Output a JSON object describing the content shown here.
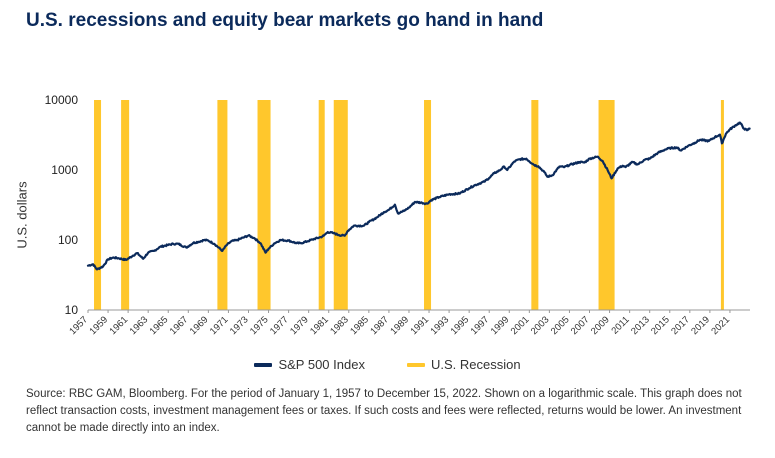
{
  "title": "U.S. recessions and equity bear markets go hand in hand",
  "footnote": "Source: RBC GAM, Bloomberg. For the period of January 1, 1957 to December 15, 2022. Shown on a logarithmic scale. This graph does not reflect transaction costs, investment management fees or taxes. If such costs and fees were reflected, returns would be lower. An investment cannot be made directly into an index.",
  "colors": {
    "line": "#0b2a5b",
    "recession": "#ffc72c",
    "title": "#0b2a5b"
  },
  "chart_data": {
    "type": "line",
    "ylabel": "U.S. dollars",
    "y_scale": "log",
    "ylim": [
      10,
      10000
    ],
    "xlim": [
      1957.0,
      2023.0
    ],
    "y_ticks": [
      {
        "value": 10,
        "label": "10"
      },
      {
        "value": 100,
        "label": "100"
      },
      {
        "value": 1000,
        "label": "1000"
      },
      {
        "value": 10000,
        "label": "10000"
      }
    ],
    "x_ticks": [
      "1957",
      "1959",
      "1961",
      "1963",
      "1965",
      "1967",
      "1969",
      "1971",
      "1973",
      "1975",
      "1977",
      "1979",
      "1981",
      "1983",
      "1985",
      "1987",
      "1989",
      "1991",
      "1993",
      "1995",
      "1997",
      "1999",
      "2001",
      "2003",
      "2005",
      "2007",
      "2009",
      "2011",
      "2013",
      "2015",
      "2017",
      "2019",
      "2021"
    ],
    "legend": {
      "position": "bottom-center",
      "line_label": "S&P 500 Index",
      "recession_label": "U.S. Recession"
    },
    "recessions": [
      [
        1957.6,
        1958.3
      ],
      [
        1960.3,
        1961.1
      ],
      [
        1969.9,
        1970.9
      ],
      [
        1973.9,
        1975.2
      ],
      [
        1980.0,
        1980.6
      ],
      [
        1981.5,
        1982.9
      ],
      [
        1990.5,
        1991.2
      ],
      [
        2001.2,
        2001.9
      ],
      [
        2007.9,
        2009.5
      ],
      [
        2020.1,
        2020.4
      ]
    ],
    "series": [
      {
        "name": "S&P 500 Index",
        "x": [
          1957.0,
          1957.5,
          1957.9,
          1958.5,
          1959.0,
          1959.5,
          1960.0,
          1960.8,
          1961.5,
          1961.9,
          1962.5,
          1963.0,
          1963.6,
          1964.2,
          1965.0,
          1965.5,
          1966.0,
          1966.8,
          1967.5,
          1968.0,
          1968.6,
          1969.0,
          1969.6,
          1970.4,
          1970.8,
          1971.3,
          1971.9,
          1972.6,
          1973.0,
          1973.6,
          1974.2,
          1974.7,
          1975.0,
          1975.6,
          1976.2,
          1977.0,
          1977.8,
          1978.2,
          1978.9,
          1979.5,
          1980.2,
          1980.5,
          1980.9,
          1981.5,
          1982.0,
          1982.6,
          1982.9,
          1983.5,
          1984.5,
          1985.0,
          1985.8,
          1986.5,
          1987.0,
          1987.6,
          1987.9,
          1988.5,
          1989.0,
          1989.6,
          1990.3,
          1990.8,
          1991.2,
          1992.0,
          1993.0,
          1994.0,
          1995.0,
          1995.5,
          1996.0,
          1996.5,
          1997.0,
          1997.5,
          1998.0,
          1998.5,
          1998.8,
          1999.5,
          2000.0,
          2000.7,
          2001.0,
          2001.5,
          2001.9,
          2002.5,
          2002.8,
          2003.3,
          2004.0,
          2004.5,
          2005.0,
          2006.0,
          2006.5,
          2007.0,
          2007.8,
          2008.3,
          2008.8,
          2009.2,
          2009.8,
          2010.3,
          2010.6,
          2011.3,
          2011.8,
          2012.5,
          2013.0,
          2013.8,
          2014.5,
          2015.0,
          2015.7,
          2016.1,
          2016.8,
          2017.5,
          2018.0,
          2018.9,
          2019.5,
          2020.0,
          2020.2,
          2020.6,
          2021.0,
          2021.5,
          2022.0,
          2022.4,
          2022.7,
          2022.96
        ],
        "values": [
          43,
          45,
          38,
          42,
          53,
          56,
          55,
          52,
          60,
          65,
          54,
          66,
          70,
          80,
          85,
          88,
          88,
          78,
          91,
          94,
          100,
          98,
          88,
          70,
          84,
          96,
          100,
          110,
          116,
          106,
          90,
          66,
          75,
          90,
          100,
          98,
          90,
          90,
          96,
          103,
          110,
          115,
          130,
          125,
          118,
          115,
          135,
          160,
          160,
          180,
          210,
          250,
          270,
          320,
          240,
          260,
          290,
          350,
          340,
          330,
          370,
          410,
          450,
          460,
          550,
          600,
          640,
          680,
          770,
          900,
          980,
          1120,
          1000,
          1320,
          1420,
          1450,
          1330,
          1180,
          1130,
          930,
          800,
          840,
          1120,
          1100,
          1180,
          1300,
          1280,
          1450,
          1550,
          1350,
          1000,
          760,
          1050,
          1150,
          1100,
          1300,
          1200,
          1400,
          1450,
          1750,
          1950,
          2050,
          2100,
          1900,
          2200,
          2450,
          2700,
          2600,
          2950,
          3200,
          2400,
          3300,
          3800,
          4300,
          4750,
          3900,
          3700,
          3900
        ]
      }
    ]
  }
}
